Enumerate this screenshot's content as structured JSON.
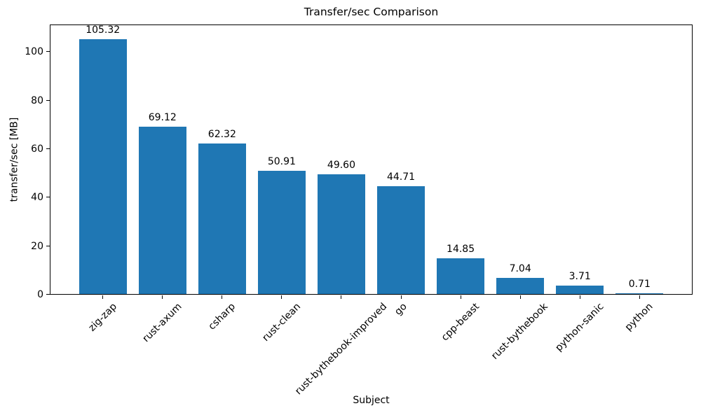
{
  "chart_data": {
    "type": "bar",
    "title": "Transfer/sec Comparison",
    "xlabel": "Subject",
    "ylabel": "transfer/sec [MB]",
    "categories": [
      "zig-zap",
      "rust-axum",
      "csharp",
      "rust-clean",
      "rust-bythebook-improved",
      "go",
      "cpp-beast",
      "rust-bythebook",
      "python-sanic",
      "python"
    ],
    "values": [
      105.32,
      69.12,
      62.32,
      50.91,
      49.6,
      44.71,
      14.85,
      7.04,
      3.71,
      0.71
    ],
    "bar_labels": [
      "105.32",
      "69.12",
      "62.32",
      "50.91",
      "49.60",
      "44.71",
      "14.85",
      "7.04",
      "3.71",
      "0.71"
    ],
    "yticks": [
      0,
      20,
      40,
      60,
      80,
      100
    ],
    "ytick_labels": [
      "0",
      "20",
      "40",
      "60",
      "80",
      "100"
    ],
    "ylim": [
      0,
      111.3
    ],
    "bar_color": "#1f77b4",
    "spine_color": "#000000",
    "text_color": "#000000",
    "grid": false,
    "legend_position": "none",
    "x_label_rotation_deg": 45
  }
}
